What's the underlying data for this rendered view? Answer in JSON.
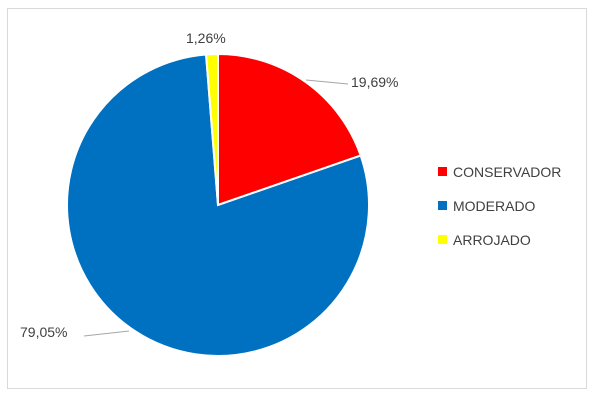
{
  "chart_data": {
    "type": "pie",
    "title": "",
    "categories": [
      "CONSERVADOR",
      "MODERADO",
      "ARROJADO"
    ],
    "values": [
      19.69,
      79.05,
      1.26
    ],
    "value_labels": [
      "19,69%",
      "79,05%",
      "1,26%"
    ],
    "colors": [
      "#ff0000",
      "#0070c0",
      "#ffff00"
    ],
    "legend_position": "right",
    "start_angle_deg": 0,
    "direction": "clockwise"
  }
}
